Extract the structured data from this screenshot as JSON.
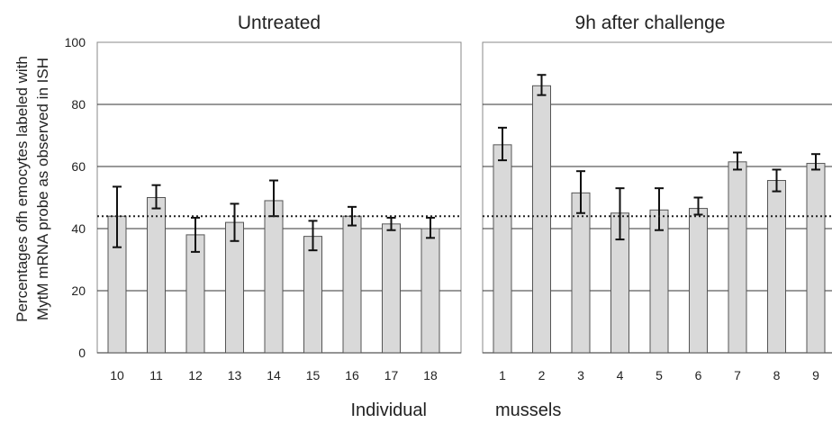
{
  "chart_data": {
    "type": "bar",
    "ylabel_line1": "Percentages ofh emocytes labeled with",
    "ylabel_line2": "MytM mRNA probe as observed in ISH",
    "xlabel_left": "Individual",
    "xlabel_right": "mussels",
    "ylim": [
      0,
      100
    ],
    "yticks": [
      0,
      20,
      40,
      60,
      80,
      100
    ],
    "grid": true,
    "reference_line": 44,
    "colors": {
      "bar_fill": "#d9d9d9",
      "bar_stroke": "#555555",
      "error_bar": "#111111",
      "grid": "#333333"
    },
    "panels": [
      {
        "title": "Untreated",
        "categories": [
          "10",
          "11",
          "12",
          "13",
          "14",
          "15",
          "16",
          "17",
          "18"
        ],
        "values": [
          44,
          50,
          38,
          42,
          49,
          37.5,
          44,
          41.5,
          40
        ],
        "err_low": [
          10,
          3.5,
          5.5,
          6,
          5,
          4.5,
          3,
          2,
          3
        ],
        "err_high": [
          9.5,
          4,
          5.5,
          6,
          6.5,
          5,
          3,
          2,
          3.5
        ]
      },
      {
        "title": "9h after challenge",
        "categories": [
          "1",
          "2",
          "3",
          "4",
          "5",
          "6",
          "7",
          "8",
          "9"
        ],
        "values": [
          67,
          86,
          51.5,
          45,
          46,
          46.5,
          61.5,
          55.5,
          61
        ],
        "err_low": [
          5,
          3,
          6.5,
          8.5,
          6.5,
          2,
          2.5,
          3.5,
          2
        ],
        "err_high": [
          5.5,
          3.5,
          7,
          8,
          7,
          3.5,
          3,
          3.5,
          3
        ]
      }
    ]
  }
}
